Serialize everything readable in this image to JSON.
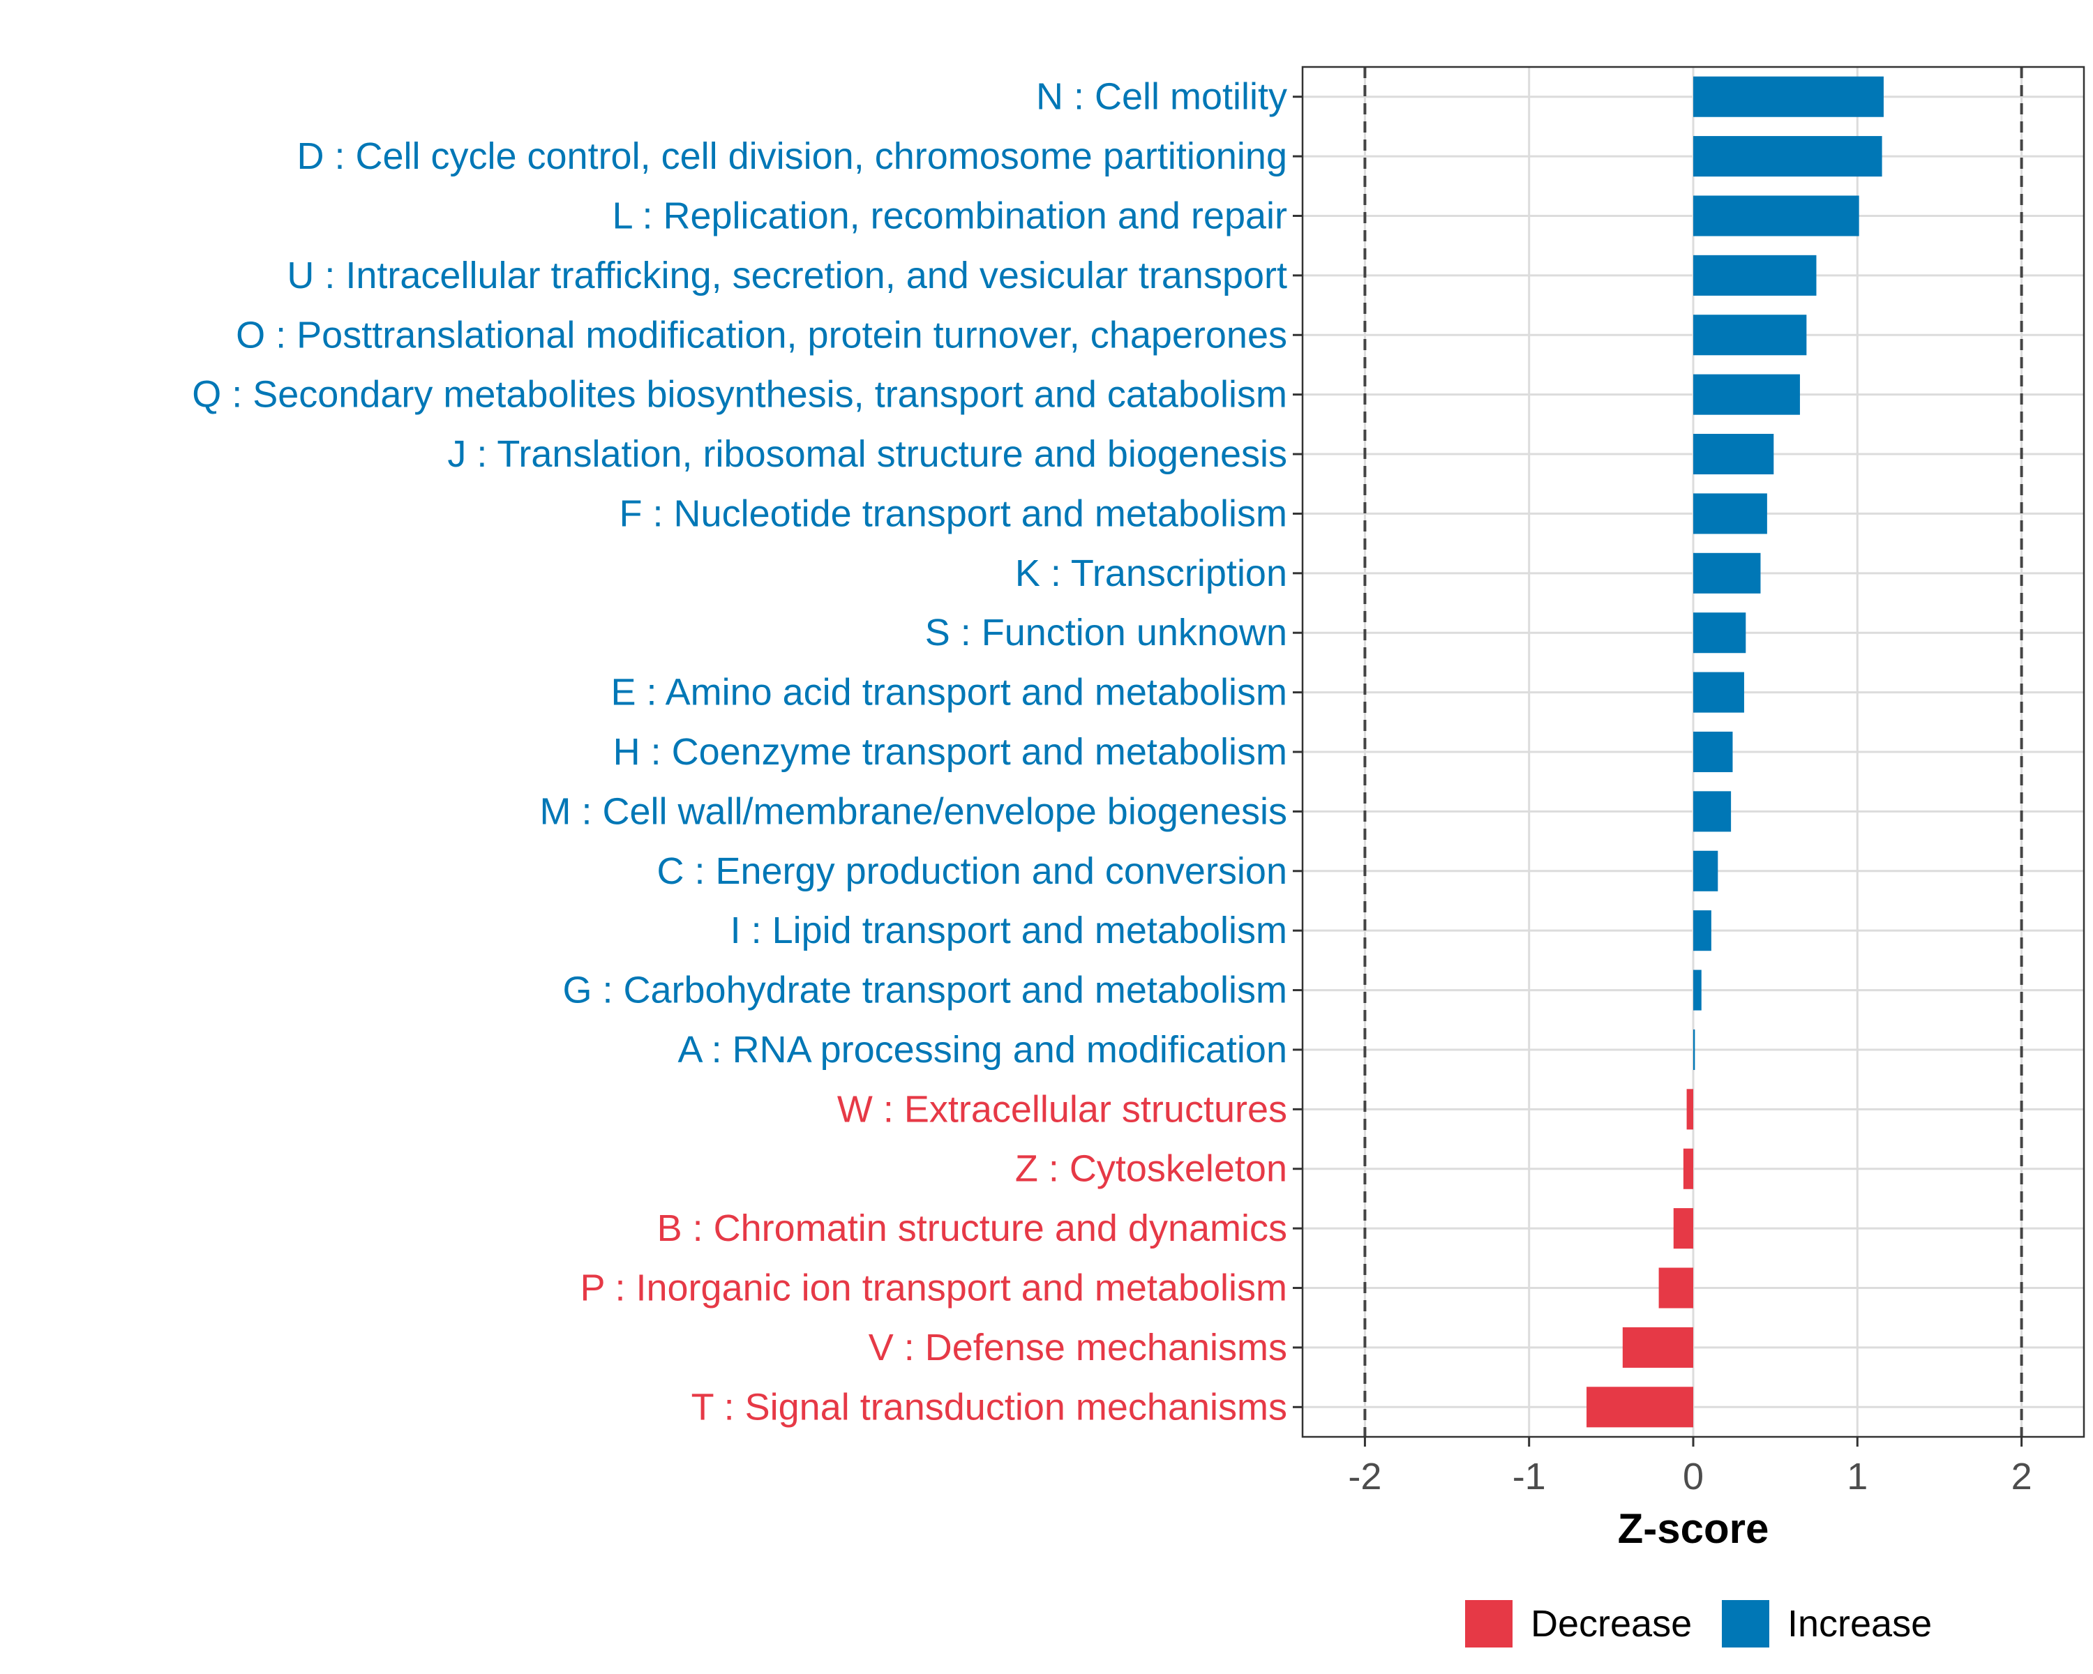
{
  "chart_data": {
    "type": "bar",
    "orientation": "horizontal",
    "title": "",
    "xlabel": "Z-score",
    "ylabel": "",
    "xlim": [
      -2.38,
      2.38
    ],
    "xticks": [
      -2,
      -1,
      0,
      1,
      2
    ],
    "xtick_labels": [
      "-2",
      "-1",
      "0",
      "1",
      "2"
    ],
    "threshold_lines": [
      -2,
      2
    ],
    "grid": true,
    "legend_position": "bottom",
    "colors": {
      "Decrease": "#E63946",
      "Increase": "#0077B6",
      "grid": "#DCDCDC",
      "axis_text": "#4D4D4D",
      "threshold": "#444444"
    },
    "legend": [
      {
        "label": "Decrease",
        "color": "#E63946"
      },
      {
        "label": "Increase",
        "color": "#0077B6"
      }
    ],
    "categories": [
      "N : Cell motility",
      "D : Cell cycle control, cell division, chromosome partitioning",
      "L : Replication, recombination and repair",
      "U : Intracellular trafficking, secretion, and vesicular transport",
      "O : Posttranslational modification, protein turnover, chaperones",
      "Q : Secondary metabolites biosynthesis, transport and catabolism",
      "J : Translation, ribosomal structure and biogenesis",
      "F : Nucleotide transport and metabolism",
      "K : Transcription",
      "S : Function unknown",
      "E : Amino acid transport and metabolism",
      "H : Coenzyme transport and metabolism",
      "M : Cell wall/membrane/envelope biogenesis",
      "C : Energy production and conversion",
      "I : Lipid transport and metabolism",
      "G : Carbohydrate transport and metabolism",
      "A : RNA processing and modification",
      "W : Extracellular structures",
      "Z : Cytoskeleton",
      "B : Chromatin structure and dynamics",
      "P : Inorganic ion transport and metabolism",
      "V : Defense mechanisms",
      "T : Signal transduction mechanisms"
    ],
    "values": [
      1.16,
      1.15,
      1.01,
      0.75,
      0.69,
      0.65,
      0.49,
      0.45,
      0.41,
      0.32,
      0.31,
      0.24,
      0.23,
      0.15,
      0.11,
      0.05,
      0.01,
      -0.04,
      -0.06,
      -0.12,
      -0.21,
      -0.43,
      -0.65
    ],
    "groups": [
      "Increase",
      "Increase",
      "Increase",
      "Increase",
      "Increase",
      "Increase",
      "Increase",
      "Increase",
      "Increase",
      "Increase",
      "Increase",
      "Increase",
      "Increase",
      "Increase",
      "Increase",
      "Increase",
      "Increase",
      "Decrease",
      "Decrease",
      "Decrease",
      "Decrease",
      "Decrease",
      "Decrease"
    ]
  }
}
